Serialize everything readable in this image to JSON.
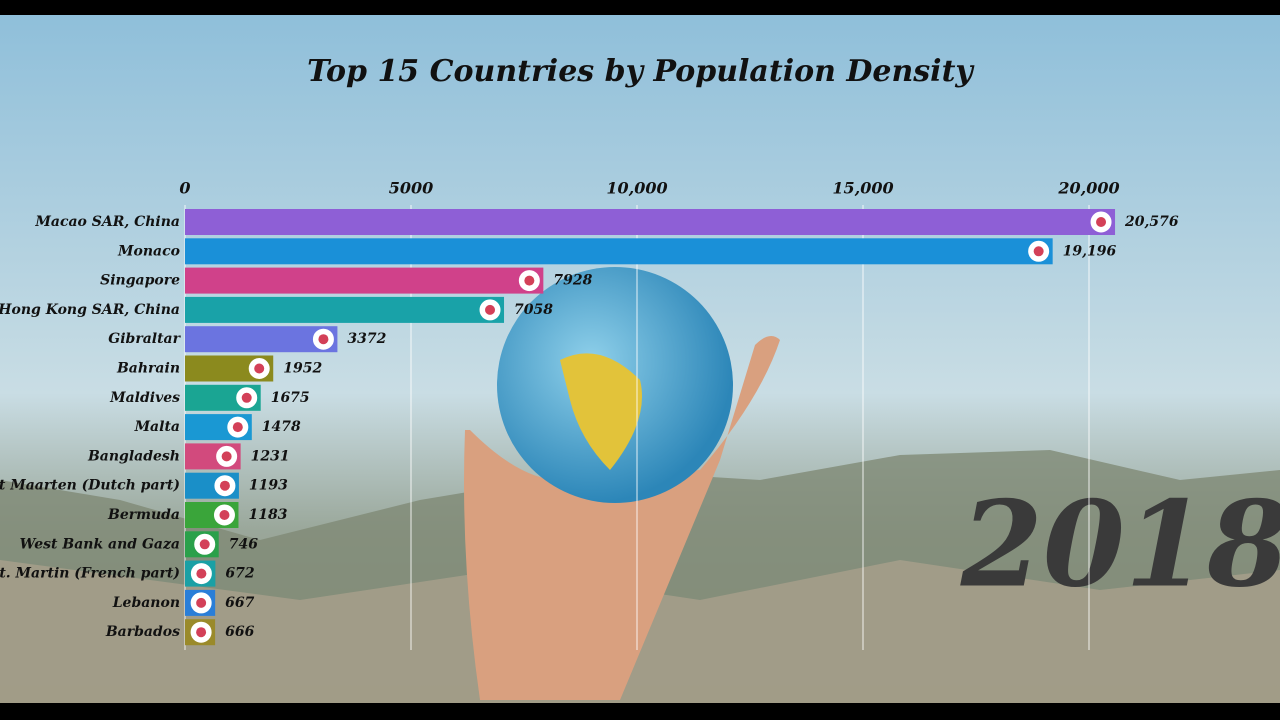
{
  "chart_data": {
    "type": "bar",
    "orientation": "horizontal",
    "title": "Top 15 Countries by Population Density",
    "annotation": "2018",
    "categories": [
      "Macao SAR, China",
      "Monaco",
      "Singapore",
      "Hong Kong SAR, China",
      "Gibraltar",
      "Bahrain",
      "Maldives",
      "Malta",
      "Bangladesh",
      "Sint Maarten (Dutch part)",
      "Bermuda",
      "West Bank and Gaza",
      "St. Martin (French part)",
      "Lebanon",
      "Barbados"
    ],
    "values": [
      20576,
      19196,
      7928,
      7058,
      3372,
      1952,
      1675,
      1478,
      1231,
      1193,
      1183,
      746,
      672,
      667,
      666
    ],
    "value_labels": [
      "20,576",
      "19,196",
      "7928",
      "7058",
      "3372",
      "1952",
      "1675",
      "1478",
      "1231",
      "1193",
      "1183",
      "746",
      "672",
      "667",
      "666"
    ],
    "colors": [
      "#8e5fd6",
      "#1a90d8",
      "#d0418a",
      "#19a2a8",
      "#6b74e0",
      "#8b8a1e",
      "#1aa593",
      "#1a98d3",
      "#d24a7d",
      "#1a8fc8",
      "#3aa53a",
      "#2aa04a",
      "#1aa0a5",
      "#2a7ed8",
      "#9a8a2a"
    ],
    "xlim": [
      0,
      20000
    ],
    "xticks": [
      0,
      5000,
      {
        "value": 10000,
        "label": "10,000"
      },
      {
        "value": 15000,
        "label": "15,000"
      },
      {
        "value": 20000,
        "label": "20,000"
      }
    ],
    "grid": true
  }
}
